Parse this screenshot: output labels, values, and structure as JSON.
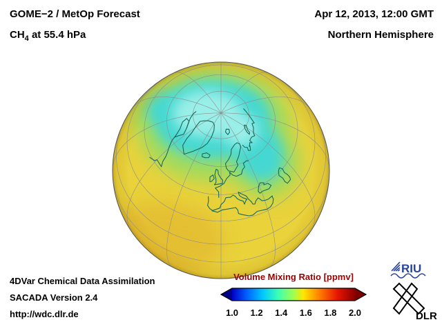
{
  "header": {
    "title": "GOME−2 / MetOp Forecast",
    "subtitle_prefix": "CH",
    "subtitle_sub": "4",
    "subtitle_suffix": " at 55.4 hPa",
    "datetime": "Apr 12, 2013, 12:00 GMT",
    "hemisphere": "Northern Hemisphere"
  },
  "globe": {
    "grid_color": "#8d8d8d",
    "coast_color": "#17695a",
    "field": {
      "background": "#e9d23a",
      "warm_edge": "#dfa92c",
      "transition": "#9fdb5e",
      "low": "#45d8d2",
      "lowest": "#9aefe8"
    }
  },
  "colorbar": {
    "title": "Volume Mixing Ratio [ppmv]",
    "title_color": "#9b0000",
    "under_color": "#000089",
    "over_color": "#7c0000",
    "stops": [
      "#0000c8",
      "#0064ff",
      "#00c8ff",
      "#3cffb4",
      "#a0ff50",
      "#ffe600",
      "#ff7800",
      "#e61400",
      "#8c0000"
    ],
    "ticks": [
      "1.0",
      "1.2",
      "1.4",
      "1.6",
      "1.8",
      "2.0"
    ]
  },
  "footer": {
    "line1": "4DVar Chemical Data Assimilation",
    "line2": "SACADA Version 2.4",
    "line3": "http://wdc.dlr.de"
  },
  "logos": {
    "riu": "RIU",
    "dlr": "DLR"
  },
  "chart_data": {
    "type": "heatmap",
    "title": "GOME−2 / MetOp Forecast CH4 at 55.4 hPa",
    "datetime": "Apr 12, 2013, 12:00 GMT",
    "projection": "orthographic globe, Northern Hemisphere, centered ~58N 0E",
    "variable": "CH4 volume mixing ratio",
    "units": "ppmv",
    "scale_range": [
      1.0,
      2.0
    ],
    "scale_ticks": [
      1.0,
      1.2,
      1.4,
      1.6,
      1.8,
      2.0
    ],
    "colormap": "blue-cyan-green-yellow-red (jet-like), arrows for under/over range",
    "features": [
      {
        "region": "Arctic polar cap core (pole, Greenland–Barents sector)",
        "value_ppmv": 1.3
      },
      {
        "region": "cyan lobe toward Canadian Arctic",
        "value_ppmv": 1.35
      },
      {
        "region": "cyan tongue extending toward central Russia / Caspian",
        "value_ppmv": 1.4
      },
      {
        "region": "green transition ring around polar cap",
        "value_ppmv": 1.48
      },
      {
        "region": "mid-latitudes (Europe, North Africa, Siberia, N America)",
        "value_ppmv": 1.6
      },
      {
        "region": "southern limb (subtropics, lower-left edge)",
        "value_ppmv": 1.65
      }
    ]
  }
}
